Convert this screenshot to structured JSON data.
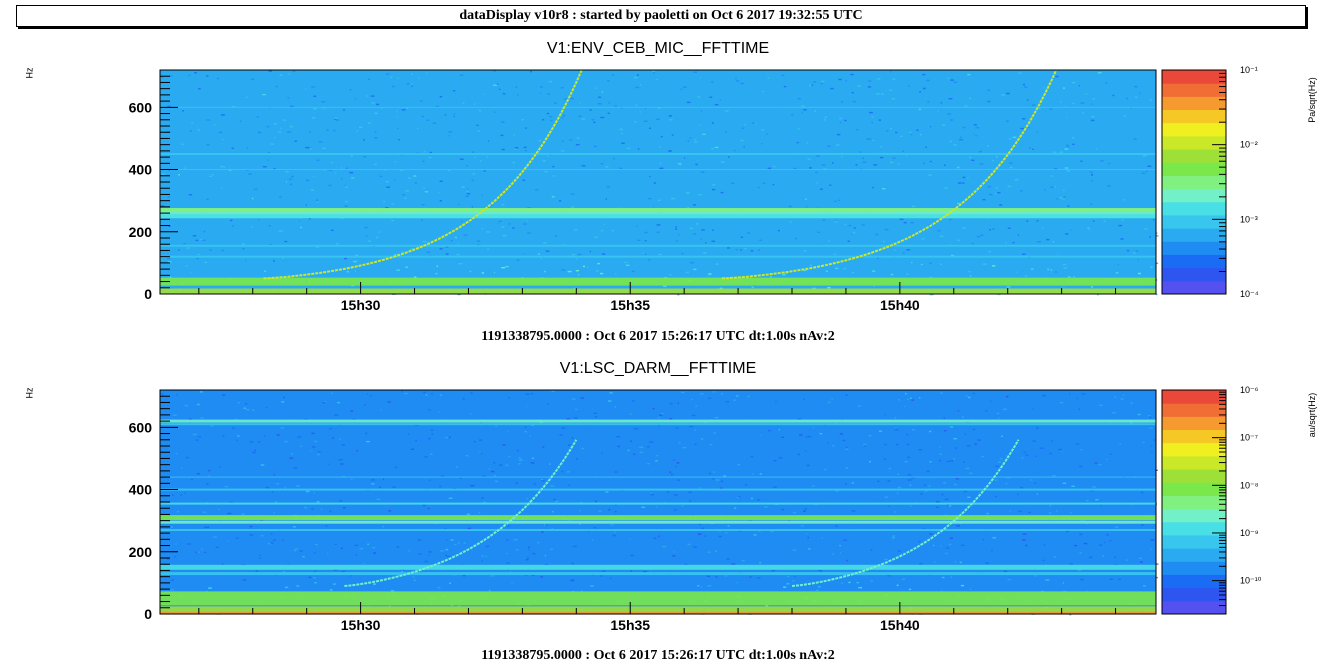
{
  "header": {
    "title": "dataDisplay v10r8 : started by paoletti on Oct  6 2017 19:32:55 UTC"
  },
  "chart_data": [
    {
      "type": "heatmap",
      "title": "V1:ENV_CEB_MIC__FFTTIME",
      "ylabel": "Hz",
      "zlabel": "Pa/sqrt(Hz)",
      "ylim": [
        0,
        720
      ],
      "y_ticks": [
        0,
        200,
        400,
        600
      ],
      "y_tick_labels": [
        "0",
        "200",
        "400",
        "600"
      ],
      "x_tick_labels": [
        "15h30",
        "15h35",
        "15h40"
      ],
      "x_ticks_minutes": [
        30,
        35,
        40
      ],
      "xlim_minutes": [
        26.28,
        44.75
      ],
      "x_axis_stamp": "1191338795.0000 : Oct  6 2017 15:26:17 UTC dt:1.00s nAv:2",
      "z_scale": "log",
      "z_range_exp": [
        -4,
        -1
      ],
      "z_tick_exps": [
        -1,
        -2,
        -3,
        -4
      ],
      "background_level": 0.25,
      "lines": [
        {
          "freq": 260,
          "level": 0.45,
          "width": 10
        },
        {
          "freq": 270,
          "level": 0.5,
          "width": 4
        },
        {
          "freq": 250,
          "level": 0.4,
          "width": 4
        },
        {
          "freq": 450,
          "level": 0.35,
          "width": 2
        },
        {
          "freq": 400,
          "level": 0.33,
          "width": 1
        },
        {
          "freq": 600,
          "level": 0.35,
          "width": 1
        },
        {
          "freq": 155,
          "level": 0.3,
          "width": 2
        },
        {
          "freq": 120,
          "level": 0.3,
          "width": 2
        },
        {
          "freq": 40,
          "level": 0.55,
          "width": 8
        },
        {
          "freq": 8,
          "level": 0.62,
          "width": 6
        }
      ],
      "chirps": [
        {
          "start_min": 28.2,
          "start_hz": 50,
          "end_min": 34.1,
          "end_hz": 720,
          "level": 0.66
        },
        {
          "start_min": 36.7,
          "start_hz": 50,
          "end_min": 42.9,
          "end_hz": 720,
          "level": 0.66
        }
      ]
    },
    {
      "type": "heatmap",
      "title": "V1:LSC_DARM__FFTTIME",
      "ylabel": "Hz",
      "zlabel": "au/sqrt(Hz)",
      "ylim": [
        0,
        720
      ],
      "y_ticks": [
        0,
        200,
        400,
        600
      ],
      "y_tick_labels": [
        "0",
        "200",
        "400",
        "600"
      ],
      "x_tick_labels": [
        "15h30",
        "15h35",
        "15h40"
      ],
      "x_ticks_minutes": [
        30,
        35,
        40
      ],
      "xlim_minutes": [
        26.28,
        44.75
      ],
      "x_axis_stamp": "1191338795.0000 : Oct  6 2017 15:26:17 UTC dt:1.00s nAv:2",
      "z_scale": "log",
      "z_range_exp": [
        -10.7,
        -6
      ],
      "z_tick_exps": [
        -6,
        -7,
        -8,
        -9,
        -10
      ],
      "background_level": 0.2,
      "lines": [
        {
          "freq": 620,
          "level": 0.45,
          "width": 3
        },
        {
          "freq": 610,
          "level": 0.35,
          "width": 2
        },
        {
          "freq": 440,
          "level": 0.35,
          "width": 1
        },
        {
          "freq": 400,
          "level": 0.35,
          "width": 2
        },
        {
          "freq": 355,
          "level": 0.4,
          "width": 2
        },
        {
          "freq": 310,
          "level": 0.55,
          "width": 5
        },
        {
          "freq": 295,
          "level": 0.45,
          "width": 3
        },
        {
          "freq": 270,
          "level": 0.33,
          "width": 2
        },
        {
          "freq": 150,
          "level": 0.38,
          "width": 5
        },
        {
          "freq": 130,
          "level": 0.33,
          "width": 3
        },
        {
          "freq": 50,
          "level": 0.55,
          "width": 14
        },
        {
          "freq": 15,
          "level": 0.6,
          "width": 6
        },
        {
          "freq": 3,
          "level": 0.85,
          "width": 3
        }
      ],
      "chirps": [
        {
          "start_min": 29.7,
          "start_hz": 90,
          "end_min": 34.0,
          "end_hz": 560,
          "level": 0.45
        },
        {
          "start_min": 38.0,
          "start_hz": 90,
          "end_min": 42.2,
          "end_hz": 560,
          "level": 0.45
        }
      ]
    }
  ]
}
